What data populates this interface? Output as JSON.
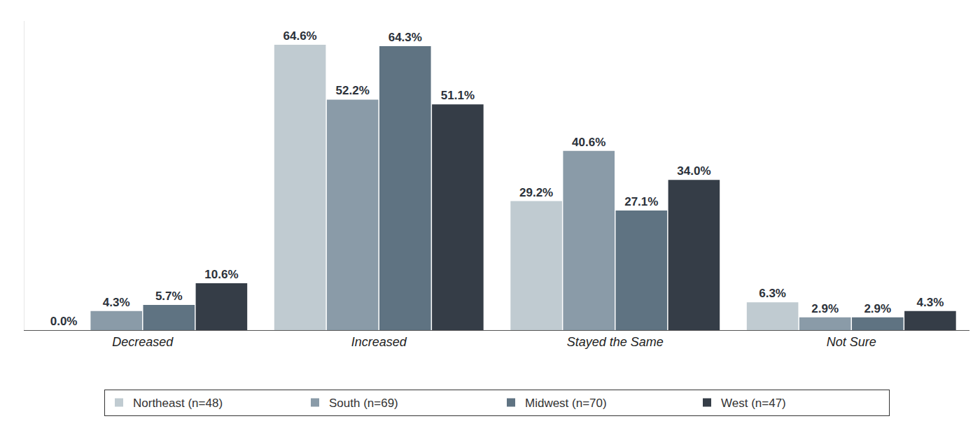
{
  "chart_data": {
    "type": "bar",
    "categories": [
      "Decreased",
      "Increased",
      "Stayed the Same",
      "Not Sure"
    ],
    "series": [
      {
        "name": "Northeast (n=48)",
        "color": "#c0cbd1",
        "values": [
          0.0,
          64.6,
          29.2,
          6.3
        ],
        "value_labels": [
          "0.0%",
          "64.6%",
          "29.2%",
          "6.3%"
        ]
      },
      {
        "name": "South (n=69)",
        "color": "#8a9ba8",
        "values": [
          4.3,
          52.2,
          40.6,
          2.9
        ],
        "value_labels": [
          "4.3%",
          "52.2%",
          "40.6%",
          "2.9%"
        ]
      },
      {
        "name": "Midwest (n=70)",
        "color": "#5f7382",
        "values": [
          5.7,
          64.3,
          27.1,
          2.9
        ],
        "value_labels": [
          "5.7%",
          "64.3%",
          "27.1%",
          "2.9%"
        ]
      },
      {
        "name": "West (n=47)",
        "color": "#353d47",
        "values": [
          10.6,
          51.1,
          34.0,
          4.3
        ],
        "value_labels": [
          "10.6%",
          "51.1%",
          "34.0%",
          "4.3%"
        ]
      }
    ],
    "ylim": [
      0,
      70
    ],
    "yticks": [],
    "grid": false,
    "legend": "bottom",
    "data_labels": true,
    "tick_labels": "x"
  }
}
